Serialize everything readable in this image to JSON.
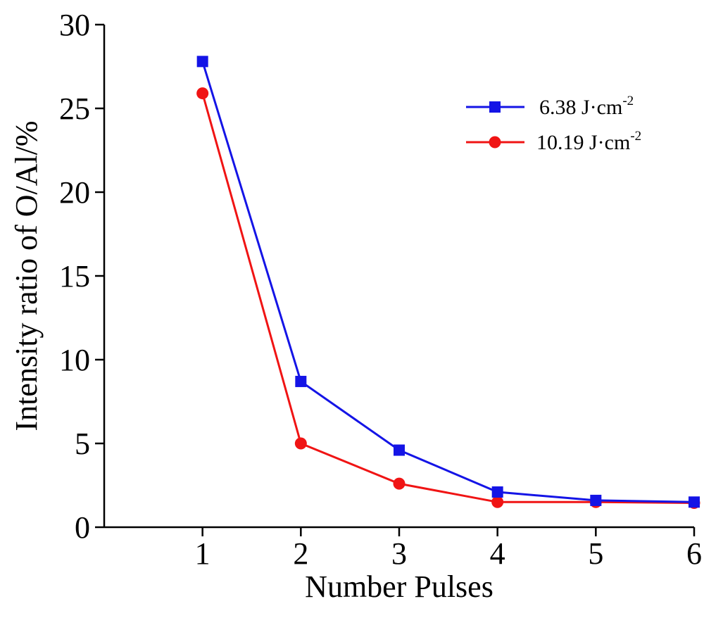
{
  "chart_data": {
    "type": "line",
    "title": "",
    "xlabel": "Number Pulses",
    "ylabel": "Intensity ratio of O/Al/%",
    "x": [
      1,
      2,
      3,
      4,
      5,
      6
    ],
    "xlim": [
      0,
      6
    ],
    "ylim": [
      0,
      30
    ],
    "xticks": [
      "1",
      "2",
      "3",
      "4",
      "5",
      "6"
    ],
    "yticks": [
      "0",
      "5",
      "10",
      "15",
      "20",
      "25",
      "30"
    ],
    "grid": false,
    "legend_position": "top-right",
    "series": [
      {
        "name": "6.38 J·cm-2",
        "name_base": "6.38 J·cm",
        "name_sup": "-2",
        "marker": "square",
        "color": "#1414e6",
        "values": [
          27.8,
          8.7,
          4.6,
          2.1,
          1.6,
          1.5
        ]
      },
      {
        "name": "10.19 J·cm-2",
        "name_base": "10.19 J·cm",
        "name_sup": "-2",
        "marker": "circle",
        "color": "#f01414",
        "values": [
          25.9,
          5.0,
          2.6,
          1.5,
          1.5,
          1.45
        ]
      }
    ]
  }
}
